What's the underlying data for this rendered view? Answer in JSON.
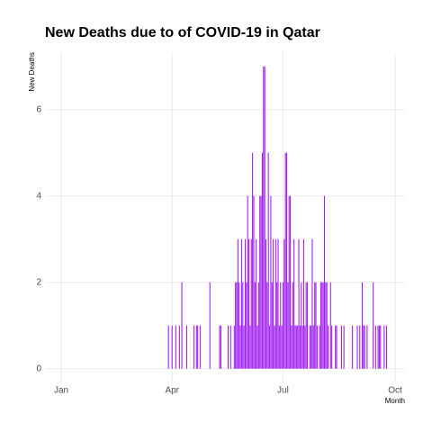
{
  "chart_data": {
    "type": "bar",
    "title": "New Deaths due to of COVID-19 in Qatar",
    "xlabel": "Month",
    "ylabel": "New Deaths",
    "color": "#a020f0",
    "grid": true,
    "x": [
      88,
      89,
      90,
      91,
      92,
      93,
      94,
      95,
      96,
      97,
      98,
      99,
      100,
      101,
      102,
      103,
      104,
      105,
      106,
      107,
      108,
      109,
      110,
      111,
      112,
      113,
      114,
      115,
      116,
      117,
      118,
      119,
      120,
      121,
      122,
      123,
      124,
      125,
      126,
      127,
      128,
      129,
      130,
      131,
      132,
      133,
      134,
      135,
      136,
      137,
      138,
      139,
      140,
      141,
      142,
      143,
      144,
      145,
      146,
      147,
      148,
      149,
      150,
      151,
      152,
      153,
      154,
      155,
      156,
      157,
      158,
      159,
      160,
      161,
      162,
      163,
      164,
      165,
      166,
      167,
      168,
      169,
      170,
      171,
      172,
      173,
      174,
      175,
      176,
      177,
      178,
      179,
      180,
      181,
      182,
      183,
      184,
      185,
      186,
      187,
      188,
      189,
      190,
      191,
      192,
      193,
      194,
      195,
      196,
      197,
      198,
      199,
      200,
      201,
      202,
      203,
      204,
      205,
      206,
      207,
      208,
      209,
      210,
      211,
      212,
      213,
      214,
      215,
      216,
      217,
      218,
      219,
      220,
      221,
      222,
      223,
      224,
      225,
      226,
      227,
      228,
      229,
      230,
      231,
      232,
      233,
      234,
      235,
      236,
      237,
      238,
      239,
      240,
      241,
      242,
      243,
      244,
      245,
      246,
      247,
      248,
      249,
      250,
      251,
      252,
      253,
      254,
      255,
      256,
      257,
      258,
      259,
      260,
      261,
      262,
      263,
      264,
      265,
      266,
      267
    ],
    "values": [
      1,
      0,
      0,
      1,
      0,
      0,
      1,
      0,
      0,
      1,
      0,
      2,
      0,
      0,
      0,
      1,
      0,
      0,
      0,
      0,
      0,
      1,
      0,
      1,
      1,
      0,
      1,
      0,
      0,
      0,
      0,
      0,
      0,
      0,
      2,
      0,
      0,
      0,
      0,
      0,
      0,
      0,
      1,
      1,
      0,
      0,
      0,
      0,
      0,
      1,
      0,
      1,
      0,
      0,
      1,
      2,
      2,
      3,
      2,
      1,
      3,
      2,
      1,
      3,
      2,
      4,
      3,
      1,
      3,
      5,
      4,
      2,
      3,
      1,
      2,
      4,
      4,
      5,
      7,
      7,
      3,
      2,
      5,
      1,
      4,
      2,
      3,
      1,
      3,
      2,
      3,
      1,
      2,
      1,
      2,
      3,
      5,
      5,
      2,
      4,
      4,
      1,
      2,
      3,
      1,
      1,
      1,
      3,
      1,
      2,
      1,
      3,
      1,
      2,
      2,
      0,
      1,
      1,
      3,
      1,
      2,
      2,
      1,
      0,
      1,
      2,
      2,
      2,
      4,
      2,
      2,
      1,
      0,
      2,
      1,
      0,
      0,
      1,
      1,
      0,
      0,
      0,
      1,
      0,
      1,
      0,
      0,
      0,
      0,
      0,
      0,
      1,
      0,
      0,
      0,
      1,
      0,
      1,
      0,
      2,
      1,
      1,
      0,
      1,
      0,
      0,
      0,
      0,
      2,
      0,
      1,
      0,
      1,
      1,
      1,
      0,
      0,
      1,
      0,
      1
    ],
    "xlim": [
      -13.3,
      282.1
    ],
    "xticks": [
      {
        "value": 0,
        "label": "Jan"
      },
      {
        "value": 91,
        "label": "Apr"
      },
      {
        "value": 182,
        "label": "Jul"
      },
      {
        "value": 274,
        "label": "Oct"
      }
    ],
    "ylim": [
      -0.32,
      7.33
    ],
    "yticks": [
      0,
      2,
      4,
      6
    ]
  }
}
